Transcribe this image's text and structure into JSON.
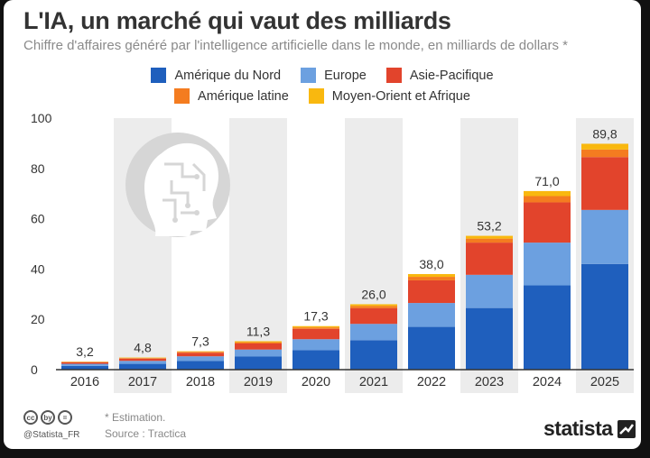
{
  "title": "L'IA, un marché qui vaut des milliards",
  "subtitle": "Chiffre d'affaires généré par l'intelligence artificielle dans le monde, en milliards de dollars *",
  "colors": {
    "north_america": "#1f5fbd",
    "europe": "#6ca0e0",
    "asia_pacific": "#e2442c",
    "latin_america": "#f47c20",
    "mea": "#f9b80f",
    "band": "#ececec",
    "axis": "#333333"
  },
  "chart_data": {
    "type": "bar",
    "stacked": true,
    "title": "L'IA, un marché qui vaut des milliards",
    "xlabel": "",
    "ylabel": "",
    "ylim": [
      0,
      100
    ],
    "yticks": [
      0,
      20,
      40,
      60,
      80,
      100
    ],
    "grid": false,
    "legend_position": "top",
    "categories": [
      "2016",
      "2017",
      "2018",
      "2019",
      "2020",
      "2021",
      "2022",
      "2023",
      "2024",
      "2025"
    ],
    "totals": [
      "3,2",
      "4,8",
      "7,3",
      "11,3",
      "17,3",
      "26,0",
      "38,0",
      "53,2",
      "71,0",
      "89,8"
    ],
    "series": [
      {
        "name": "Amérique du Nord",
        "key": "north_america",
        "values": [
          1.5,
          2.3,
          3.5,
          5.2,
          7.8,
          11.7,
          17.0,
          24.5,
          33.5,
          42.0
        ]
      },
      {
        "name": "Europe",
        "key": "europe",
        "values": [
          0.8,
          1.2,
          1.8,
          2.8,
          4.3,
          6.5,
          9.5,
          13.2,
          17.0,
          21.5
        ]
      },
      {
        "name": "Asie-Pacifique",
        "key": "asia_pacific",
        "values": [
          0.6,
          0.9,
          1.4,
          2.4,
          4.1,
          6.2,
          9.0,
          12.8,
          16.0,
          21.0
        ]
      },
      {
        "name": "Amérique latine",
        "key": "latin_america",
        "values": [
          0.2,
          0.2,
          0.4,
          0.5,
          0.6,
          0.9,
          1.4,
          1.6,
          2.5,
          3.0
        ]
      },
      {
        "name": "Moyen-Orient et Afrique",
        "key": "mea",
        "values": [
          0.1,
          0.2,
          0.2,
          0.4,
          0.5,
          0.7,
          1.1,
          1.1,
          2.0,
          2.3
        ]
      }
    ],
    "annotations": [
      "* Estimation."
    ]
  },
  "footer": {
    "handle": "@Statista_FR",
    "estimation": "* Estimation.",
    "source": "Source : Tractica",
    "brand": "statista",
    "cc_icons": [
      "cc",
      "by",
      "="
    ]
  }
}
